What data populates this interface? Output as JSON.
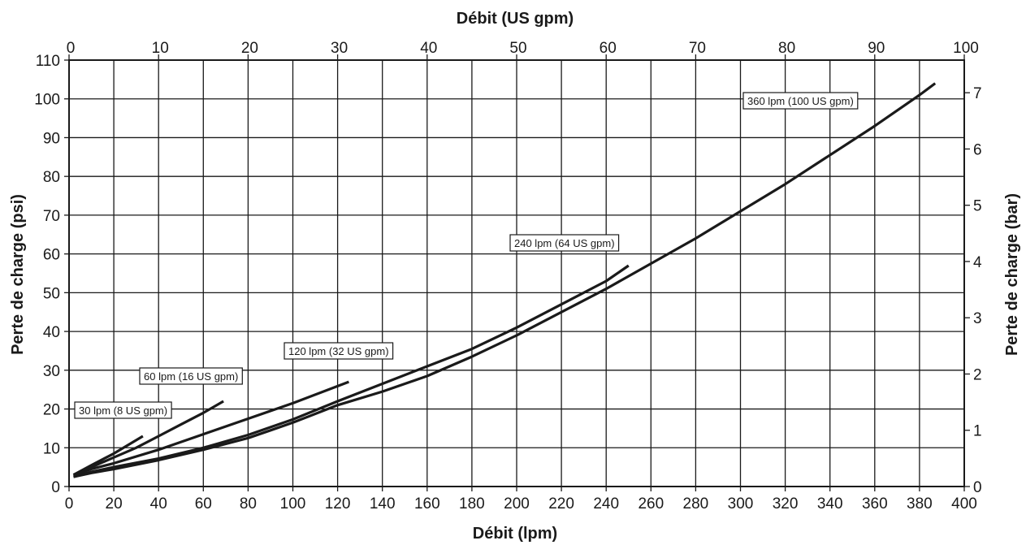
{
  "chart_data": {
    "type": "line",
    "title": "",
    "xlabel": "Débit (lpm)",
    "x2label": "Débit (US gpm)",
    "ylabel": "Perte de charge (psi)",
    "y2label": "Perte de charge (bar)",
    "xlim": [
      0,
      400
    ],
    "ylim": [
      0,
      110
    ],
    "x2lim": [
      0,
      100
    ],
    "y2lim": [
      0,
      7.58
    ],
    "grid": true,
    "x_ticks": [
      "0",
      "20",
      "40",
      "60",
      "80",
      "100",
      "120",
      "140",
      "160",
      "180",
      "200",
      "220",
      "240",
      "260",
      "280",
      "300",
      "320",
      "340",
      "360",
      "380",
      "400"
    ],
    "y_ticks": [
      "0",
      "10",
      "20",
      "30",
      "40",
      "50",
      "60",
      "70",
      "80",
      "90",
      "100",
      "110"
    ],
    "x2_ticks": [
      "0",
      "10",
      "20",
      "30",
      "40",
      "50",
      "60",
      "70",
      "80",
      "90",
      "100"
    ],
    "y2_ticks": [
      "0",
      "1",
      "2",
      "3",
      "4",
      "5",
      "6",
      "7"
    ],
    "series": [
      {
        "name": "30 lpm (8 US gpm)",
        "x": [
          2,
          10,
          20,
          33
        ],
        "y": [
          3,
          5.5,
          8.5,
          13
        ]
      },
      {
        "name": "60 lpm (16 US gpm)",
        "x": [
          2,
          10,
          20,
          30,
          40,
          50,
          60,
          69
        ],
        "y": [
          3,
          5,
          7.5,
          10,
          13,
          16,
          19,
          22
        ]
      },
      {
        "name": "120 lpm (32 US gpm)",
        "x": [
          2,
          10,
          20,
          40,
          60,
          80,
          100,
          125
        ],
        "y": [
          3,
          4.5,
          6,
          9.5,
          13.5,
          17.5,
          21.5,
          27
        ]
      },
      {
        "name": "240 lpm (64 US gpm)",
        "x": [
          2,
          10,
          20,
          40,
          60,
          80,
          100,
          120,
          140,
          160,
          180,
          200,
          220,
          240,
          250
        ],
        "y": [
          2.5,
          3.8,
          5,
          7.2,
          10,
          13.3,
          17.3,
          22,
          26.5,
          31,
          35.5,
          41,
          47,
          53,
          57
        ]
      },
      {
        "name": "360 lpm (100 US gpm)",
        "x": [
          2,
          10,
          20,
          40,
          60,
          80,
          90,
          100,
          120,
          140,
          160,
          180,
          200,
          240,
          280,
          320,
          360,
          380,
          387
        ],
        "y": [
          2.5,
          3.5,
          4.5,
          6.8,
          9.5,
          12.5,
          14.5,
          16.5,
          21,
          24.5,
          28.5,
          33.5,
          39,
          51,
          64,
          78,
          93,
          101,
          104
        ]
      }
    ]
  }
}
